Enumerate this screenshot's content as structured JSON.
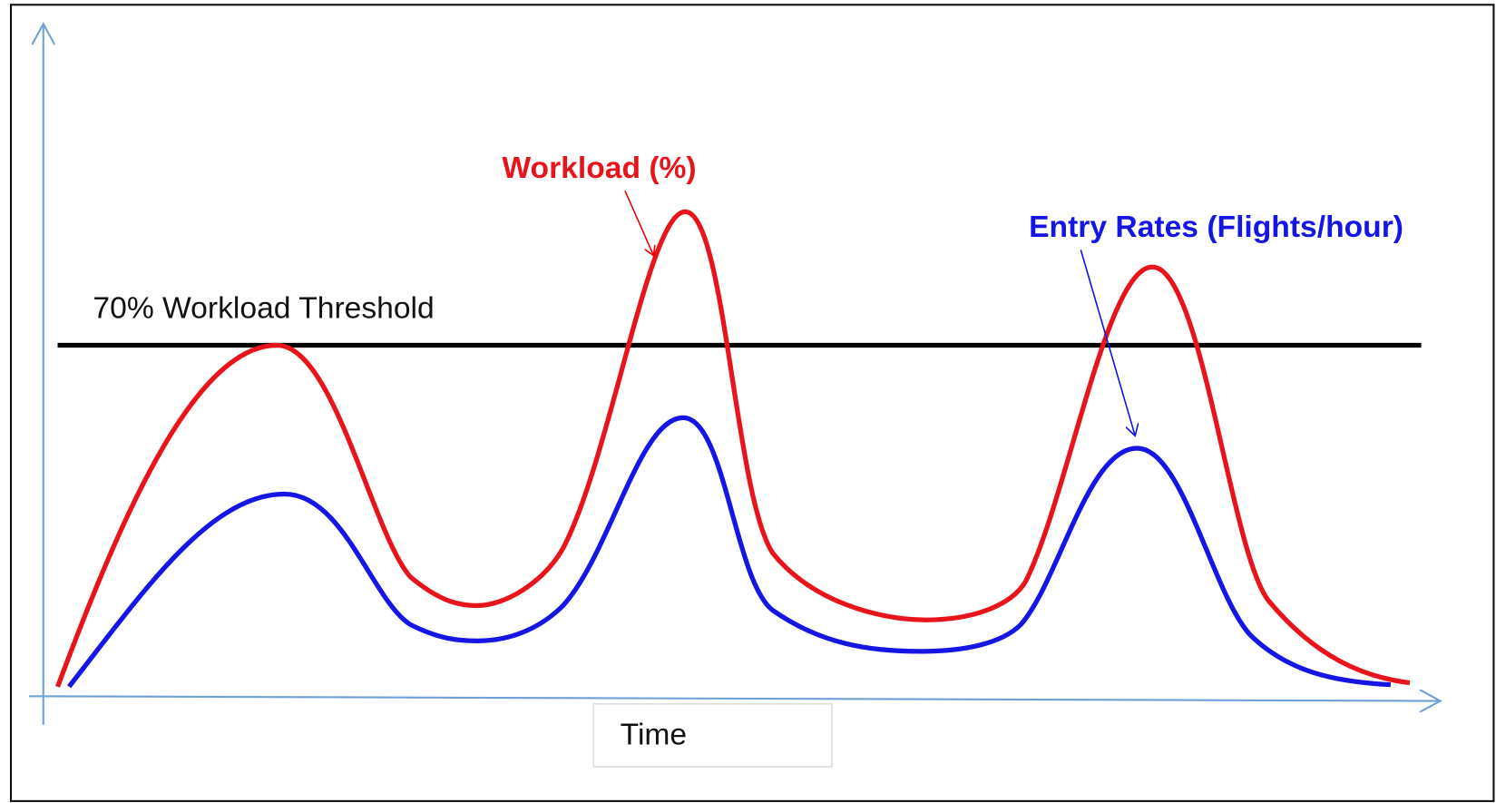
{
  "labels": {
    "workload": "Workload (%)",
    "entry_rates": "Entry Rates (Flights/hour)",
    "threshold": "70% Workload Threshold",
    "x_axis": "Time"
  }
}
